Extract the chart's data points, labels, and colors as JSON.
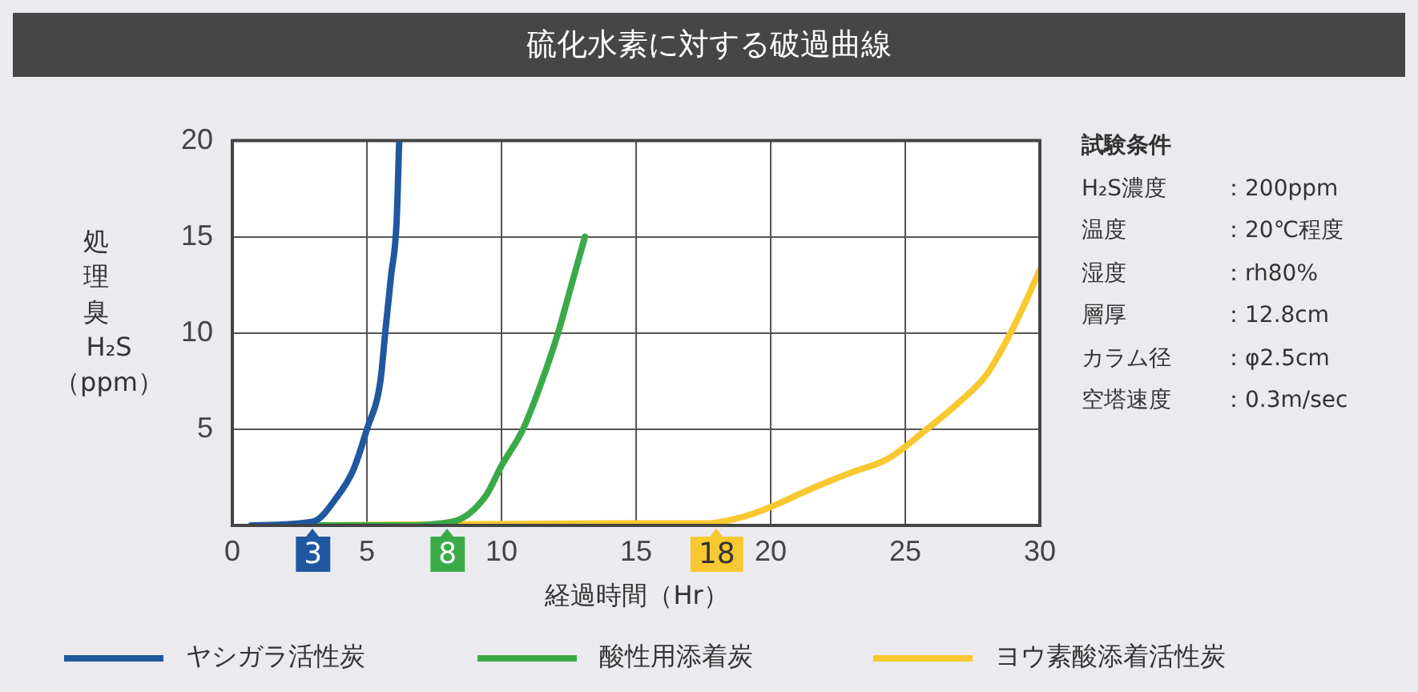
{
  "chart_data": {
    "type": "line",
    "title": "硫化水素に対する破過曲線",
    "xlabel": "経過時間（Hr）",
    "ylabel": "処理臭 H₂S（ppm）",
    "xlim": [
      0,
      30
    ],
    "xticks": [
      0,
      5,
      10,
      15,
      20,
      25,
      30
    ],
    "ylim": [
      0,
      20
    ],
    "yticks": [
      5,
      10,
      15,
      20
    ],
    "grid": true,
    "legend": "bottom",
    "marker": "none",
    "line_style": "solid",
    "series": [
      {
        "name": "ヤシガラ活性炭",
        "color": "#1f58a0",
        "x": [
          0.7,
          3,
          3.9,
          4.5,
          5,
          5.5,
          5.7,
          5.9,
          6.1,
          6.2
        ],
        "values": [
          0,
          0.2,
          1.5,
          2.9,
          5,
          7.5,
          10.3,
          13,
          15.7,
          20
        ]
      },
      {
        "name": "酸性用添着炭",
        "color": "#3aaa48",
        "x": [
          2,
          6,
          8.2,
          9.4,
          10,
          10.8,
          11.5,
          12.1,
          12.6,
          13.1
        ],
        "values": [
          0,
          0,
          0.2,
          1.5,
          3.1,
          5,
          7.5,
          10,
          12.5,
          15
        ]
      },
      {
        "name": "ヨウ素酸添着活性炭",
        "color": "#f8c830",
        "x": [
          3,
          14,
          17.6,
          19.1,
          19.9,
          21.5,
          22.9,
          24.4,
          25.8,
          27,
          28,
          28.8,
          29.4,
          30
        ],
        "values": [
          0,
          0.1,
          0.1,
          0.5,
          0.9,
          1.9,
          2.7,
          3.5,
          5,
          6.4,
          7.8,
          9.7,
          11.4,
          13.3
        ]
      }
    ],
    "annotations": [
      {
        "text": "3",
        "x": 3,
        "y": 0
      },
      {
        "text": "8",
        "x": 8,
        "y": 0
      },
      {
        "text": "18",
        "x": 18,
        "y": 0
      },
      "試験条件",
      "H₂S濃度：200ppm",
      "温度：20℃程度",
      "湿度：rh80%",
      "層厚：12.8cm",
      "カラム径：φ2.5cm",
      "空塔速度：0.3m/sec"
    ]
  }
}
